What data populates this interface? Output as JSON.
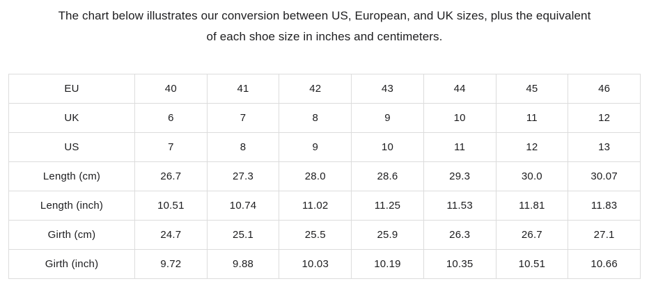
{
  "heading": {
    "line1": "The chart below illustrates our conversion between US, European, and UK sizes, plus the equivalent",
    "line2": "of each shoe size in inches and centimeters."
  },
  "table": {
    "rows": [
      {
        "label": "EU",
        "values": [
          "40",
          "41",
          "42",
          "43",
          "44",
          "45",
          "46"
        ]
      },
      {
        "label": "UK",
        "values": [
          "6",
          "7",
          "8",
          "9",
          "10",
          "11",
          "12"
        ]
      },
      {
        "label": "US",
        "values": [
          "7",
          "8",
          "9",
          "10",
          "11",
          "12",
          "13"
        ]
      },
      {
        "label": "Length (cm)",
        "values": [
          "26.7",
          "27.3",
          "28.0",
          "28.6",
          "29.3",
          "30.0",
          "30.07"
        ]
      },
      {
        "label": "Length (inch)",
        "values": [
          "10.51",
          "10.74",
          "11.02",
          "11.25",
          "11.53",
          "11.81",
          "11.83"
        ]
      },
      {
        "label": "Girth (cm)",
        "values": [
          "24.7",
          "25.1",
          "25.5",
          "25.9",
          "26.3",
          "26.7",
          "27.1"
        ]
      },
      {
        "label": "Girth (inch)",
        "values": [
          "9.72",
          "9.88",
          "10.03",
          "10.19",
          "10.35",
          "10.51",
          "10.66"
        ]
      }
    ]
  },
  "chart_data": {
    "type": "table",
    "title": "Shoe size conversion chart",
    "row_headers": [
      "EU",
      "UK",
      "US",
      "Length (cm)",
      "Length (inch)",
      "Girth (cm)",
      "Girth (inch)"
    ],
    "columns": [
      [
        "40",
        "6",
        "7",
        "26.7",
        "10.51",
        "24.7",
        "9.72"
      ],
      [
        "41",
        "7",
        "8",
        "27.3",
        "10.74",
        "25.1",
        "9.88"
      ],
      [
        "42",
        "8",
        "9",
        "28.0",
        "11.02",
        "25.5",
        "10.03"
      ],
      [
        "43",
        "9",
        "10",
        "28.6",
        "11.25",
        "25.9",
        "10.19"
      ],
      [
        "44",
        "10",
        "11",
        "29.3",
        "11.53",
        "26.3",
        "10.35"
      ],
      [
        "45",
        "11",
        "12",
        "30.0",
        "11.81",
        "26.7",
        "10.51"
      ],
      [
        "46",
        "12",
        "13",
        "30.07",
        "11.83",
        "27.1",
        "10.66"
      ]
    ]
  },
  "colors": {
    "text": "#1d1d1f",
    "table_border": "#dcdcdc",
    "background": "#ffffff"
  }
}
